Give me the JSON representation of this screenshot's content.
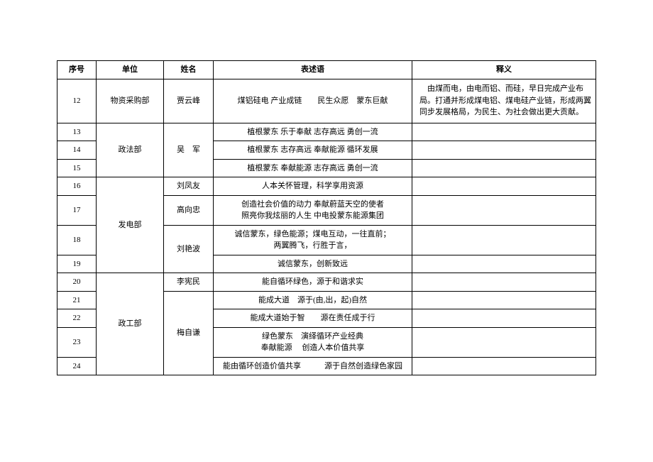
{
  "headers": {
    "seq": "序号",
    "unit": "单位",
    "name": "姓名",
    "expr": "表述语",
    "mean": "释义"
  },
  "rows": {
    "r12": {
      "seq": "12",
      "unit": "物资采购部",
      "name": "贾云峰",
      "expr": "煤铝硅电  产业成链　　民生众愿　蒙东巨献",
      "mean": "　由煤而电，由电而铝、而硅，早日完成产业布局。打通并形成煤电铝、煤电硅产业链，形成两翼同步发展格局，为民生、为社会做出更大贡献。"
    },
    "r13": {
      "seq": "13",
      "unit": "政法部",
      "name": "吴　军",
      "expr": "植根蒙东  乐于奉献  志存高远  勇创一流",
      "mean": ""
    },
    "r14": {
      "seq": "14",
      "expr": "植根蒙东  志存高远  奉献能源  循环发展",
      "mean": ""
    },
    "r15": {
      "seq": "15",
      "expr": "植根蒙东  奉献能源  志存高远  勇创一流",
      "mean": ""
    },
    "r16": {
      "seq": "16",
      "unit": "发电部",
      "name": "刘凤友",
      "expr": "人本关怀管理，科学享用资源",
      "mean": ""
    },
    "r17": {
      "seq": "17",
      "name": "高向忠",
      "expr": "创造社会价值的动力  奉献蔚蓝天空的使者\n照亮你我炫丽的人生  中电投蒙东能源集团",
      "mean": ""
    },
    "r18": {
      "seq": "18",
      "name": "刘艳波",
      "expr": "诚信蒙东，绿色能源；煤电互动，一往直前；\n两翼腾飞，行胜于言，",
      "mean": ""
    },
    "r19": {
      "seq": "19",
      "expr": "诚信蒙东，创新致远",
      "mean": ""
    },
    "r20": {
      "seq": "20",
      "unit": "政工部",
      "name": "李宪民",
      "expr": "能自循环绿色，源于和谐求实",
      "mean": ""
    },
    "r21": {
      "seq": "21",
      "name": "梅自谦",
      "expr": "能成大道　源于(由,出，起)自然",
      "mean": ""
    },
    "r22": {
      "seq": "22",
      "expr": "能成大道始于智　　源在责任成于行",
      "mean": ""
    },
    "r23": {
      "seq": "23",
      "expr": "绿色蒙东　演绎循环产业经典\n奉献能源　 创造人本价值共享",
      "mean": ""
    },
    "r24": {
      "seq": "24",
      "expr": "能由循环创造价值共享　　　源于自然创造绿色家园",
      "mean": ""
    }
  }
}
